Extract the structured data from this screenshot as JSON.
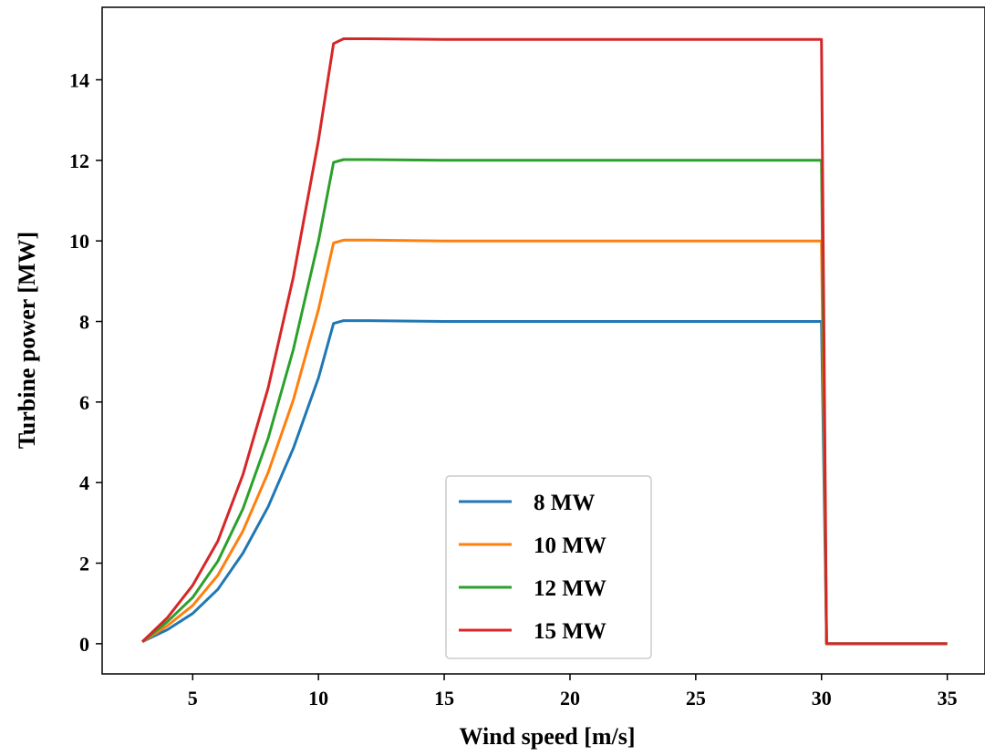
{
  "chart_data": {
    "type": "line",
    "title": "",
    "xlabel": "Wind speed [m/s]",
    "ylabel": "Turbine power [MW]",
    "xlim": [
      1.4,
      36.5
    ],
    "ylim": [
      -0.75,
      15.8
    ],
    "xticks": [
      5,
      10,
      15,
      20,
      25,
      30,
      35
    ],
    "yticks": [
      0,
      2,
      4,
      6,
      8,
      10,
      12,
      14
    ],
    "grid": false,
    "legend_position": "lower center",
    "x": [
      3,
      4,
      5,
      6,
      7,
      8,
      9,
      10,
      10.6,
      11,
      12,
      15,
      20,
      25,
      30,
      30.2,
      35
    ],
    "series": [
      {
        "name": "8 MW",
        "color": "#1f77b4",
        "values": [
          0.05,
          0.35,
          0.75,
          1.35,
          2.25,
          3.4,
          4.85,
          6.6,
          7.95,
          8.02,
          8.02,
          8.0,
          8.0,
          8.0,
          8.0,
          0.0,
          0.0
        ]
      },
      {
        "name": "10 MW",
        "color": "#ff7f0e",
        "values": [
          0.05,
          0.45,
          0.95,
          1.7,
          2.8,
          4.25,
          6.05,
          8.3,
          9.95,
          10.02,
          10.02,
          10.0,
          10.0,
          10.0,
          10.0,
          0.0,
          0.0
        ]
      },
      {
        "name": "12 MW",
        "color": "#2ca02c",
        "values": [
          0.05,
          0.55,
          1.15,
          2.05,
          3.35,
          5.1,
          7.3,
          10.0,
          11.95,
          12.02,
          12.02,
          12.0,
          12.0,
          12.0,
          12.0,
          0.0,
          0.0
        ]
      },
      {
        "name": "15 MW",
        "color": "#d62728",
        "values": [
          0.05,
          0.65,
          1.45,
          2.55,
          4.2,
          6.35,
          9.1,
          12.5,
          14.9,
          15.02,
          15.02,
          15.0,
          15.0,
          15.0,
          15.0,
          0.0,
          0.0
        ]
      }
    ]
  }
}
